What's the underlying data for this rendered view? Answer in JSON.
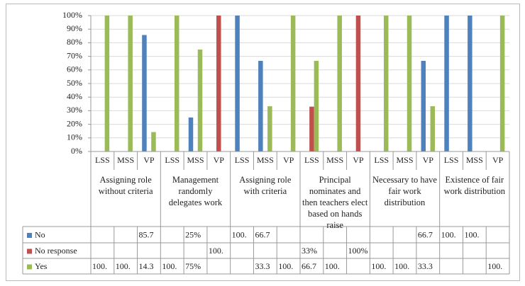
{
  "chart_data": {
    "type": "bar",
    "categories": [
      "LSS",
      "MSS",
      "VP",
      "LSS",
      "MSS",
      "VP",
      "LSS",
      "MSS",
      "VP",
      "LSS",
      "MSS",
      "VP",
      "LSS",
      "MSS",
      "VP",
      "LSS",
      "MSS",
      "VP"
    ],
    "groups": [
      "Assigning role without criteria",
      "Management randomly delegates work",
      "Assigning role with criteria",
      "Principal nominates and then teachers elect based on hands raise",
      "Necessary to have fair work distribution",
      "Existence of fair work distribution"
    ],
    "series": [
      {
        "name": "No",
        "color": "#4f81bd",
        "values": [
          null,
          null,
          85.7,
          null,
          25,
          null,
          100,
          66.7,
          null,
          null,
          null,
          null,
          null,
          null,
          66.7,
          100,
          100,
          null
        ],
        "value_labels": [
          null,
          null,
          "85.7",
          null,
          "25%",
          null,
          "100.",
          "66.7",
          null,
          null,
          null,
          null,
          null,
          null,
          "66.7",
          "100.",
          "100.",
          null
        ]
      },
      {
        "name": "No response",
        "color": "#c0504d",
        "values": [
          null,
          null,
          null,
          null,
          null,
          100,
          null,
          null,
          null,
          33,
          null,
          100,
          null,
          null,
          null,
          null,
          null,
          null
        ],
        "value_labels": [
          null,
          null,
          null,
          null,
          null,
          "100.",
          null,
          null,
          null,
          "33%",
          null,
          "100%",
          null,
          null,
          null,
          null,
          null,
          null
        ]
      },
      {
        "name": "Yes",
        "color": "#9bbb59",
        "values": [
          100,
          100,
          14.3,
          100,
          75,
          null,
          null,
          33.3,
          100,
          66.7,
          100,
          null,
          100,
          100,
          33.3,
          null,
          null,
          100
        ],
        "value_labels": [
          "100.",
          "100.",
          "14.3",
          "100.",
          "75%",
          null,
          null,
          "33.3",
          "100.",
          "66.7",
          "100.",
          null,
          "100.",
          "100.",
          "33.3",
          null,
          null,
          "100."
        ]
      }
    ],
    "ylim": [
      0,
      100
    ],
    "yticks": [
      {
        "value": 0,
        "label": "0%"
      },
      {
        "value": 10,
        "label": "10%"
      },
      {
        "value": 20,
        "label": "20%"
      },
      {
        "value": 30,
        "label": "30%"
      },
      {
        "value": 40,
        "label": "40%"
      },
      {
        "value": 50,
        "label": "50%"
      },
      {
        "value": 60,
        "label": "60%"
      },
      {
        "value": 70,
        "label": "70%"
      },
      {
        "value": 80,
        "label": "80%"
      },
      {
        "value": 90,
        "label": "90%"
      },
      {
        "value": 100,
        "label": "100%"
      }
    ],
    "grid": true
  }
}
